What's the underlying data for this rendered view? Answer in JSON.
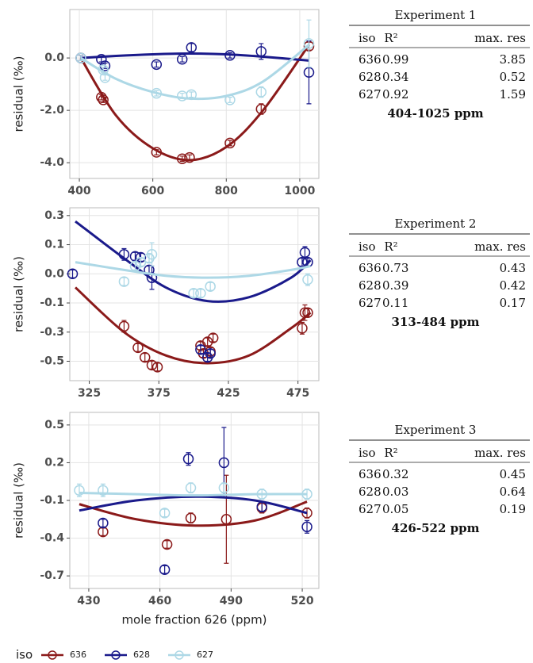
{
  "chart_data": [
    {
      "type": "scatter",
      "y_label": "residual (‰)",
      "xlim": [
        374,
        1052
      ],
      "ylim": [
        -4.6,
        1.85
      ],
      "xticks": [
        400,
        600,
        800,
        1000
      ],
      "yticks": [
        {
          "value": -4,
          "label": "-4.0"
        },
        {
          "value": -2,
          "label": "-2.0"
        },
        {
          "value": 0,
          "label": "0.0"
        }
      ],
      "grid": true,
      "series": [
        {
          "name": "636",
          "color": "#8b1a1a",
          "x": [
            404,
            460,
            465,
            610,
            680,
            700,
            810,
            895,
            1025
          ],
          "values": [
            0.0,
            -1.5,
            -1.6,
            -3.6,
            -3.85,
            -3.8,
            -3.25,
            -1.95,
            0.45
          ],
          "errors": [
            0.1,
            0.1,
            0.1,
            0.1,
            0.1,
            0.1,
            0.1,
            0.2,
            0.15
          ],
          "fit_x": [
            404,
            500,
            600,
            700,
            800,
            900,
            1025
          ],
          "fit_y": [
            0.0,
            -2.2,
            -3.45,
            -3.9,
            -3.4,
            -2.0,
            0.5
          ]
        },
        {
          "name": "628",
          "color": "#1a1a8b",
          "x": [
            404,
            460,
            470,
            610,
            680,
            705,
            810,
            895,
            1025
          ],
          "values": [
            0.0,
            -0.05,
            -0.3,
            -0.25,
            -0.05,
            0.4,
            0.1,
            0.25,
            -0.55
          ],
          "errors": [
            0.1,
            0.1,
            0.1,
            0.1,
            0.1,
            0.15,
            0.1,
            0.3,
            1.2
          ],
          "fit_x": [
            404,
            500,
            600,
            700,
            800,
            900,
            1025
          ],
          "fit_y": [
            0.0,
            0.08,
            0.14,
            0.17,
            0.14,
            0.05,
            -0.1
          ]
        },
        {
          "name": "627",
          "color": "#add8e6",
          "x": [
            404,
            465,
            470,
            610,
            680,
            705,
            810,
            895,
            1025
          ],
          "values": [
            0.0,
            -0.45,
            -0.75,
            -1.35,
            -1.45,
            -1.4,
            -1.6,
            -1.3,
            0.55
          ],
          "errors": [
            0.1,
            0.1,
            0.1,
            0.1,
            0.1,
            0.1,
            0.1,
            0.2,
            0.9
          ],
          "fit_x": [
            404,
            500,
            600,
            700,
            800,
            900,
            1025
          ],
          "fit_y": [
            0.0,
            -0.8,
            -1.3,
            -1.55,
            -1.45,
            -0.9,
            0.5
          ]
        }
      ]
    },
    {
      "type": "scatter",
      "y_label": "residual (‰)",
      "xlim": [
        311,
        490
      ],
      "ylim": [
        -0.55,
        0.34
      ],
      "xticks": [
        325,
        375,
        425,
        475
      ],
      "yticks": [
        {
          "value": -0.45,
          "label": "-0.5"
        },
        {
          "value": -0.3,
          "label": "-0.3"
        },
        {
          "value": -0.15,
          "label": "-0.1"
        },
        {
          "value": 0,
          "label": "0.0"
        },
        {
          "value": 0.15,
          "label": "0.1"
        },
        0.3
      ],
      "grid": true,
      "series": [
        {
          "name": "636",
          "color": "#8b1a1a",
          "x": [
            350,
            360,
            365,
            370,
            374,
            405,
            407,
            410,
            412,
            414,
            478,
            480,
            482
          ],
          "values": [
            -0.27,
            -0.38,
            -0.43,
            -0.47,
            -0.48,
            -0.37,
            -0.41,
            -0.35,
            -0.4,
            -0.33,
            -0.28,
            -0.2,
            -0.2
          ],
          "errors": [
            0.03,
            0.02,
            0.02,
            0.02,
            0.02,
            0.02,
            0.02,
            0.02,
            0.02,
            0.02,
            0.03,
            0.04,
            0.02
          ],
          "fit_x": [
            315,
            350,
            380,
            410,
            440,
            470,
            484
          ],
          "fit_y": [
            -0.07,
            -0.3,
            -0.42,
            -0.46,
            -0.42,
            -0.28,
            -0.2
          ]
        },
        {
          "name": "628",
          "color": "#1a1a8b",
          "x": [
            313,
            350,
            358,
            362,
            368,
            370,
            405,
            410,
            412,
            478,
            480,
            482
          ],
          "values": [
            0.0,
            0.1,
            0.09,
            0.085,
            0.02,
            -0.02,
            -0.39,
            -0.43,
            -0.41,
            0.06,
            0.11,
            0.06
          ],
          "errors": [
            0.02,
            0.03,
            0.02,
            0.02,
            0.02,
            0.06,
            0.02,
            0.02,
            0.02,
            0.02,
            0.03,
            0.02
          ],
          "fit_x": [
            315,
            350,
            380,
            410,
            440,
            470,
            484
          ],
          "fit_y": [
            0.27,
            0.08,
            -0.07,
            -0.14,
            -0.12,
            -0.02,
            0.07
          ]
        },
        {
          "name": "627",
          "color": "#add8e6",
          "x": [
            350,
            358,
            362,
            368,
            370,
            400,
            405,
            412,
            482
          ],
          "values": [
            -0.04,
            0.04,
            0.06,
            0.08,
            0.1,
            -0.1,
            -0.1,
            -0.065,
            -0.03
          ],
          "errors": [
            0.02,
            0.02,
            0.02,
            0.02,
            0.06,
            0.02,
            0.02,
            0.02,
            0.03
          ],
          "fit_x": [
            315,
            350,
            380,
            410,
            440,
            470,
            484
          ],
          "fit_y": [
            0.06,
            0.02,
            -0.01,
            -0.02,
            -0.01,
            0.02,
            0.04
          ]
        }
      ]
    },
    {
      "type": "scatter",
      "y_label": "residual (‰)",
      "x_label": "mole fraction 626 (ppm)",
      "legend_title": "iso",
      "xlim": [
        422,
        527
      ],
      "ylim": [
        -0.8,
        0.6
      ],
      "xticks": [
        430,
        460,
        490,
        520
      ],
      "yticks": [
        -0.7,
        -0.4,
        -0.1,
        0.2,
        0.5
      ],
      "grid": true,
      "series": [
        {
          "name": "636",
          "color": "#8b1a1a",
          "x": [
            436,
            463,
            473,
            488,
            503,
            522
          ],
          "values": [
            -0.35,
            -0.45,
            -0.24,
            -0.25,
            -0.16,
            -0.2
          ],
          "errors": [
            0.03,
            0.03,
            0.04,
            0.35,
            0.04,
            0.04
          ],
          "fit_x": [
            426,
            450,
            475,
            500,
            522
          ],
          "fit_y": [
            -0.13,
            -0.25,
            -0.3,
            -0.26,
            -0.11
          ]
        },
        {
          "name": "628",
          "color": "#1a1a8b",
          "x": [
            436,
            462,
            472,
            487,
            503,
            522
          ],
          "values": [
            -0.28,
            -0.65,
            0.23,
            0.2,
            -0.15,
            -0.31
          ],
          "errors": [
            0.03,
            0.03,
            0.05,
            0.28,
            0.04,
            0.05
          ],
          "fit_x": [
            426,
            450,
            475,
            500,
            522
          ],
          "fit_y": [
            -0.18,
            -0.1,
            -0.07,
            -0.1,
            -0.2
          ]
        },
        {
          "name": "627",
          "color": "#add8e6",
          "x": [
            426,
            436,
            462,
            473,
            487,
            503,
            522
          ],
          "values": [
            -0.02,
            -0.02,
            -0.2,
            0.0,
            0.0,
            -0.05,
            -0.05
          ],
          "errors": [
            0.05,
            0.05,
            0.03,
            0.04,
            0.04,
            0.04,
            0.04
          ],
          "fit_x": [
            426,
            450,
            475,
            500,
            522
          ],
          "fit_y": [
            -0.04,
            -0.05,
            -0.06,
            -0.05,
            -0.05
          ]
        }
      ]
    }
  ],
  "tables": [
    {
      "title": "Experiment 1",
      "columns": [
        "iso",
        "R²",
        "max. res"
      ],
      "rows": [
        [
          636,
          0.99,
          3.85
        ],
        [
          628,
          0.34,
          0.52
        ],
        [
          627,
          0.92,
          1.59
        ]
      ],
      "footer": "404-1025 ppm"
    },
    {
      "title": "Experiment 2",
      "columns": [
        "iso",
        "R²",
        "max. res"
      ],
      "rows": [
        [
          636,
          0.73,
          0.43
        ],
        [
          628,
          0.39,
          0.42
        ],
        [
          627,
          0.11,
          0.17
        ]
      ],
      "footer": "313-484 ppm"
    },
    {
      "title": "Experiment 3",
      "columns": [
        "iso",
        "R²",
        "max. res"
      ],
      "rows": [
        [
          636,
          0.32,
          0.45
        ],
        [
          628,
          0.03,
          0.64
        ],
        [
          627,
          0.05,
          0.19
        ]
      ],
      "footer": "426-522 ppm"
    }
  ]
}
